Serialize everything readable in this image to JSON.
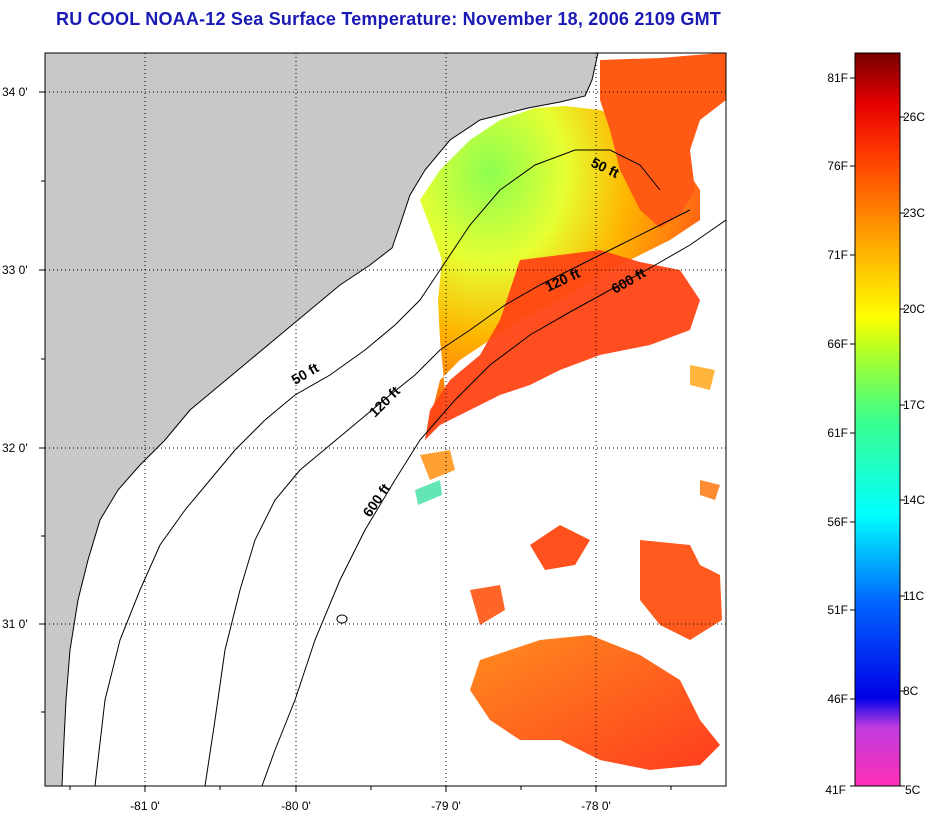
{
  "title": "RU COOL  NOAA-12  Sea Surface Temperature:  November 18, 2006 2109 GMT",
  "lat_ticks": [
    "34 0'",
    "33 0'",
    "32 0'",
    "31 0'"
  ],
  "lon_ticks": [
    "-81 0'",
    "-80 0'",
    "-79 0'",
    "-78 0'"
  ],
  "contour_labels": {
    "c50_north": "50 ft",
    "c50_south": "50 ft",
    "c120_north": "120 ft",
    "c120_south": "120 ft",
    "c600_north": "600 ft",
    "c600_south": "600 ft"
  },
  "colorbar": {
    "fahrenheit": [
      "81F",
      "76F",
      "71F",
      "66F",
      "61F",
      "56F",
      "51F",
      "46F",
      "41F"
    ],
    "celsius": [
      "26C",
      "23C",
      "20C",
      "17C",
      "14C",
      "11C",
      "8C",
      "5C"
    ]
  },
  "colors": {
    "title": "#1a1ab4",
    "land": "#c8c8c8",
    "water": "#ffffff"
  }
}
